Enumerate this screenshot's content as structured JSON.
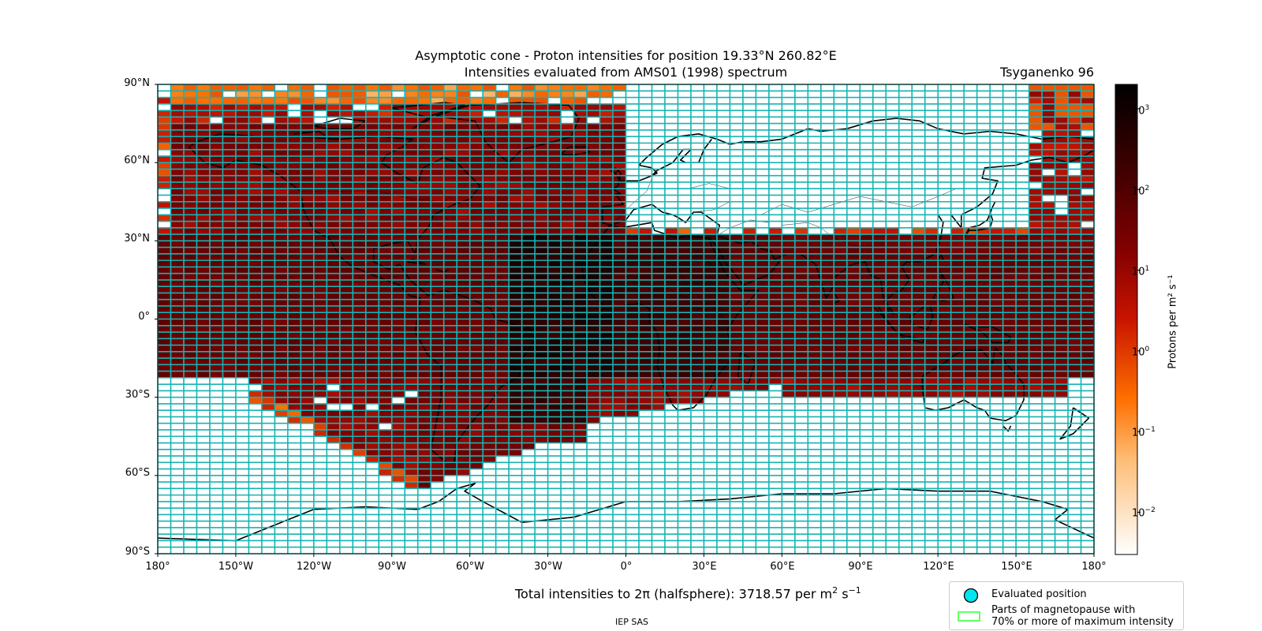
{
  "title_line1": "Asymptotic cone - Proton intensities for position 19.33°N 260.82°E",
  "title_line2": "Intensities evaluated from AMS01 (1998) spectrum",
  "model": "Tsyganenko 96",
  "colorbar": {
    "label": "Protons per m² s⁻¹",
    "ticks": [
      {
        "base": "10",
        "exp": "3"
      },
      {
        "base": "10",
        "exp": "2"
      },
      {
        "base": "10",
        "exp": "1"
      },
      {
        "base": "10",
        "exp": "0"
      },
      {
        "base": "10",
        "exp": "−1"
      },
      {
        "base": "10",
        "exp": "−2"
      }
    ]
  },
  "lat_ticks": [
    "90°N",
    "60°N",
    "30°N",
    "0°",
    "30°S",
    "60°S",
    "90°S"
  ],
  "lon_ticks": [
    "180°",
    "150°W",
    "120°W",
    "90°W",
    "60°W",
    "30°W",
    "0°",
    "30°E",
    "60°E",
    "90°E",
    "120°E",
    "150°E",
    "180°"
  ],
  "total": {
    "prefix": "Total intensities to 2π (halfsphere): 3718.57 per m",
    "sq": "2",
    "mid": " s",
    "exp": "−1"
  },
  "credit": "IEP SAS",
  "legend": {
    "evaluated": "Evaluated position",
    "magnetopause_line1": "Parts of magnetopause with",
    "magnetopause_line2": "70% or more of maximum intensity"
  },
  "colors": {
    "grid": "#17b3b3",
    "coast": "#000000",
    "marker": "#00e5ee",
    "magnetopause": "#33ff33"
  },
  "chart_data": {
    "type": "heatmap",
    "title": "Asymptotic cone - Proton intensities for position 19.33°N 260.82°E / Intensities evaluated from AMS01 (1998) spectrum",
    "xlabel": "",
    "ylabel": "",
    "xlim": [
      -180,
      180
    ],
    "ylim": [
      -90,
      90
    ],
    "cell_size_deg": [
      5,
      2.5
    ],
    "color_scale": "log",
    "crange": [
      0.003,
      2000
    ],
    "colormap": "white-orange-red-black",
    "region_bands_intensity": [
      {
        "lat": [
          -23,
          33
        ],
        "lon": [
          -180,
          180
        ],
        "value": 60
      },
      {
        "lat": [
          -23,
          33
        ],
        "lon": [
          -50,
          0
        ],
        "value": 400
      },
      {
        "lat": [
          33,
          85
        ],
        "lon": [
          -175,
          0
        ],
        "value": 20
      },
      {
        "lat": [
          -60,
          -23
        ],
        "lon": [
          -140,
          -15
        ],
        "value": 25
      },
      {
        "lat": [
          -40,
          -23
        ],
        "lon": [
          0,
          180
        ],
        "value": 10
      },
      {
        "lat": [
          35,
          80
        ],
        "lon": [
          -5,
          60
        ],
        "value": 0
      },
      {
        "lat": [
          -90,
          -65
        ],
        "lon": [
          -180,
          180
        ],
        "value": 0
      }
    ],
    "total_intensity": 3718.57,
    "evaluated_position": {
      "lat": 19.33,
      "lon": 260.82
    }
  }
}
